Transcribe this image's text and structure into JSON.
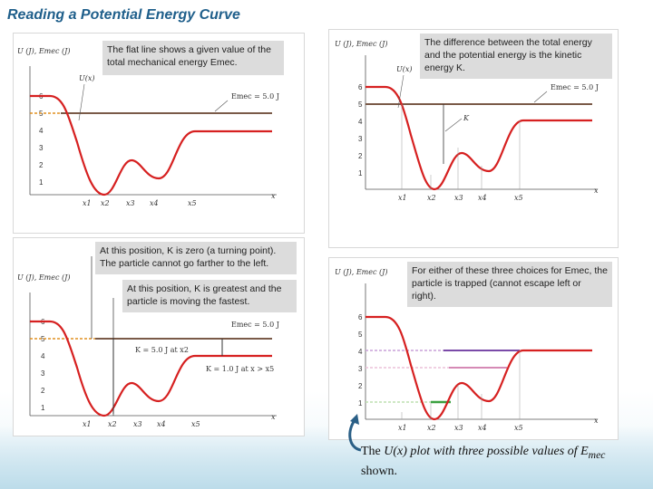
{
  "slide": {
    "title": "Reading a Potential Energy Curve"
  },
  "panel_a": {
    "callout": "The flat line shows a given value of the total mechanical energy Emec.",
    "y_axis_label": "U (J), Emec (J)",
    "curve_label": "U(x)",
    "line_label": "Emec = 5.0 J",
    "y_ticks": [
      "6",
      "5",
      "4",
      "3",
      "2",
      "1"
    ],
    "x_ticks": [
      "x1",
      "x2",
      "x3",
      "x4",
      "x5"
    ],
    "x_axis_label": "x"
  },
  "panel_b": {
    "callout": "The difference between the total energy and the potential energy is the kinetic energy K.",
    "y_axis_label": "U (J), Emec (J)",
    "curve_label": "U(x)",
    "line_label": "Emec = 5.0 J",
    "k_label": "K",
    "y_ticks": [
      "6",
      "5",
      "4",
      "3",
      "2",
      "1"
    ],
    "x_ticks": [
      "x1",
      "x2",
      "x3",
      "x4",
      "x5"
    ],
    "x_axis_label": "x"
  },
  "panel_c": {
    "callout_1": "At this position, K is zero (a turning point). The particle cannot go farther to the left.",
    "callout_2": "At this position, K is greatest and the particle is moving the fastest.",
    "y_axis_label": "U (J), Emec (J)",
    "line_label": "Emec = 5.0 J",
    "k_label_1": "K = 5.0 J at x2",
    "k_label_2": "K = 1.0 J at x > x5",
    "y_ticks": [
      "6",
      "5",
      "4",
      "3",
      "2",
      "1"
    ],
    "x_ticks": [
      "x1",
      "x2",
      "x3",
      "x4",
      "x5"
    ],
    "x_axis_label": "x"
  },
  "panel_d": {
    "callout": "For either of these three choices for Emec, the particle is trapped (cannot escape left or right).",
    "y_axis_label": "U (J), Emec (J)",
    "y_ticks": [
      "6",
      "5",
      "4",
      "3",
      "2",
      "1"
    ],
    "x_ticks": [
      "x1",
      "x2",
      "x3",
      "x4",
      "x5"
    ],
    "x_axis_label": "x"
  },
  "caption": {
    "text_before": "The ",
    "italic": "U(x) plot with three possible values of E",
    "sub": "mec",
    "text_after": " shown."
  },
  "colors": {
    "title": "#1f5f8b",
    "curve": "#d62020",
    "emec_line": "#7a5a48",
    "dashed_orange": "#e09020",
    "purple": "#7a4aa8",
    "pink": "#d58ab5",
    "green": "#3aa040"
  }
}
